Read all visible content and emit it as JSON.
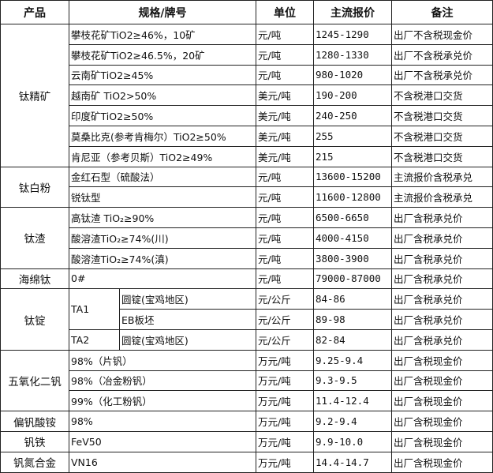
{
  "headers": [
    "产品",
    "规格/牌号",
    "单位",
    "主流报价",
    "备注"
  ],
  "groups": [
    {
      "product": "钛精矿",
      "items": [
        {
          "spec": "攀枝花矿TiO2≥46%，10矿",
          "unit": "元/吨",
          "price": "1245-1290",
          "note": "出厂不含税现金价"
        },
        {
          "spec": "攀枝花矿TiO2≥46.5%，20矿",
          "unit": "元/吨",
          "price": "1280-1330",
          "note": "出厂不含税承兑价"
        },
        {
          "spec": "云南矿TiO2≥45%",
          "unit": "元/吨",
          "price": "980-1020",
          "note": "出厂不含税承兑价"
        },
        {
          "spec": "越南矿 TiO2>50%",
          "unit": "美元/吨",
          "price": "190-200",
          "note": "不含税港口交货"
        },
        {
          "spec": "印度矿TiO2≥50%",
          "unit": "美元/吨",
          "price": "240-250",
          "note": "不含税港口交货"
        },
        {
          "spec": "莫桑比克(参考肯梅尔）TiO2≥50%",
          "unit": "美元/吨",
          "price": "255",
          "note": "不含税港口交货"
        },
        {
          "spec": "肯尼亚（参考贝斯）TiO2≥49%",
          "unit": "美元/吨",
          "price": "215",
          "note": "不含税港口交货"
        }
      ]
    },
    {
      "product": "钛白粉",
      "items": [
        {
          "spec": "金红石型（硫酸法）",
          "unit": "元/吨",
          "price": "13600-15200",
          "note": "主流报价含税承兑"
        },
        {
          "spec": "锐钛型",
          "unit": "元/吨",
          "price": "11600-12800",
          "note": "主流报价含税承兑"
        }
      ]
    },
    {
      "product": "钛渣",
      "items": [
        {
          "spec": "高钛渣 TiO₂≥90%",
          "unit": "元/吨",
          "price": "6500-6650",
          "note": "出厂含税承兑价"
        },
        {
          "spec": "酸溶渣TiO₂≥74%(川)",
          "unit": "元/吨",
          "price": "4000-4150",
          "note": "出厂含税承兑价"
        },
        {
          "spec": "酸溶渣TiO₂≥74%(滇)",
          "unit": "元/吨",
          "price": "3800-3900",
          "note": "出厂含税承兑价"
        }
      ]
    },
    {
      "product": "海绵钛",
      "items": [
        {
          "spec": "0#",
          "unit": "元/吨",
          "price": "79000-87000",
          "note": "出厂含税承兑价"
        }
      ]
    },
    {
      "product": "钛锭",
      "items": [
        {
          "grade": "TA1",
          "grade_rows": 2,
          "spec": "圆锭(宝鸡地区)",
          "unit": "元/公斤",
          "price": "84-86",
          "note": "出厂含税承兑价"
        },
        {
          "spec": "EB板坯",
          "unit": "元/公斤",
          "price": "89-98",
          "note": "出厂含税承兑价"
        },
        {
          "grade": "TA2",
          "grade_rows": 1,
          "spec": "圆锭(宝鸡地区)",
          "unit": "元/公斤",
          "price": "82-84",
          "note": "出厂含税承兑价"
        }
      ]
    },
    {
      "product": "五氧化二钒",
      "items": [
        {
          "spec": "98%（片钒）",
          "unit": "万元/吨",
          "price": "9.25-9.4",
          "note": "出厂含税现金价"
        },
        {
          "spec": "98%（冶金粉钒）",
          "unit": "万元/吨",
          "price": "9.3-9.5",
          "note": "出厂含税现金价"
        },
        {
          "spec": "99%（化工粉钒）",
          "unit": "万元/吨",
          "price": "11.4-12.4",
          "note": "出厂含税现金价"
        }
      ]
    },
    {
      "product": "偏钒酸铵",
      "items": [
        {
          "spec": "98%",
          "unit": "万元/吨",
          "price": "9.2-9.4",
          "note": "出厂含税现金价"
        }
      ]
    },
    {
      "product": "钒铁",
      "items": [
        {
          "spec": "FeV50",
          "unit": "万元/吨",
          "price": "9.9-10.0",
          "note": "出厂含税现金价"
        }
      ]
    },
    {
      "product": "钒氮合金",
      "items": [
        {
          "spec": "VN16",
          "unit": "万元/吨",
          "price": "14.4-14.7",
          "note": "出厂含税现金价"
        }
      ]
    }
  ]
}
